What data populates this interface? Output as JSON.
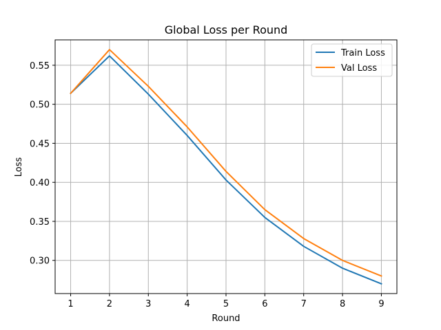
{
  "chart_data": {
    "type": "line",
    "title": "Global Loss per Round",
    "xlabel": "Round",
    "ylabel": "Loss",
    "x": [
      1,
      2,
      3,
      4,
      5,
      6,
      7,
      8,
      9
    ],
    "xticks": [
      "1",
      "2",
      "3",
      "4",
      "5",
      "6",
      "7",
      "8",
      "9"
    ],
    "yticks": [
      "0.30",
      "0.35",
      "0.40",
      "0.45",
      "0.50",
      "0.55"
    ],
    "xlim": [
      0.6,
      9.4
    ],
    "ylim": [
      0.2575,
      0.5825
    ],
    "grid": true,
    "legend_position": "top-right",
    "series": [
      {
        "name": "Train Loss",
        "color": "#1f77b4",
        "values": [
          0.514,
          0.562,
          0.513,
          0.46,
          0.403,
          0.355,
          0.318,
          0.29,
          0.27
        ]
      },
      {
        "name": "Val Loss",
        "color": "#ff7f0e",
        "values": [
          0.514,
          0.57,
          0.523,
          0.471,
          0.414,
          0.365,
          0.328,
          0.3,
          0.28
        ]
      }
    ]
  }
}
